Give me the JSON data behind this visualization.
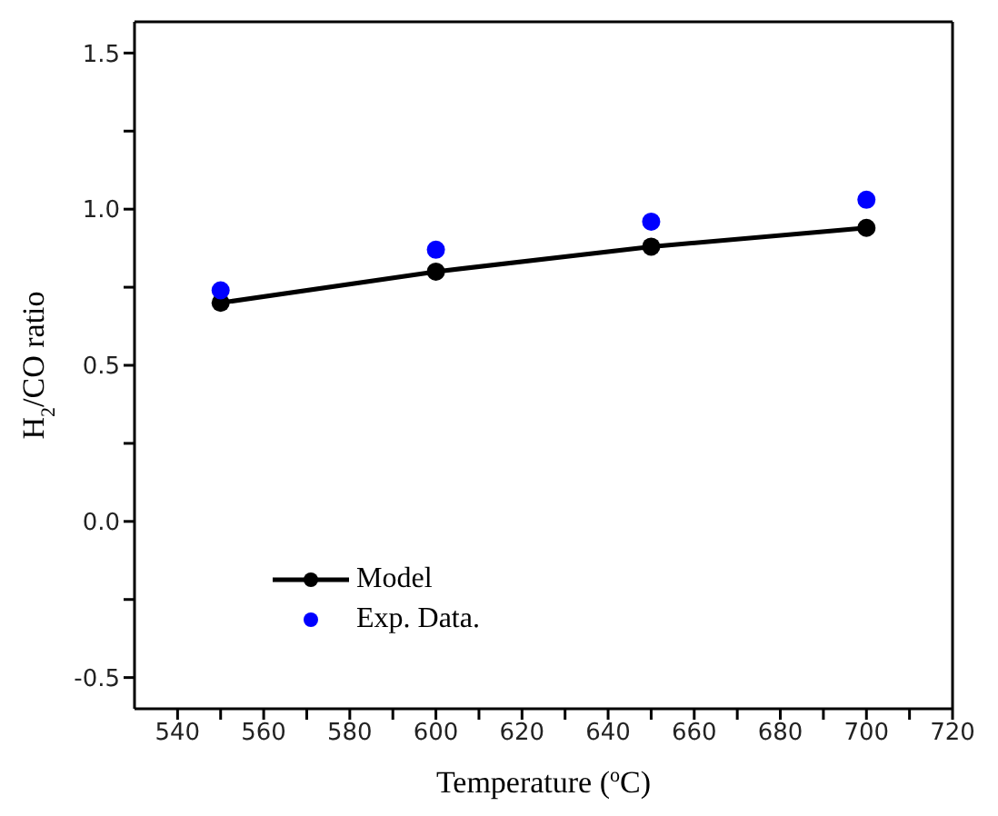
{
  "chart_data": {
    "type": "line",
    "xlabel": "Temperature ($^{o}$C)",
    "ylabel": "H$_{2}$/CO ratio",
    "x": [
      550,
      600,
      650,
      700
    ],
    "series": [
      {
        "name": "Model",
        "color": "#000000",
        "values": [
          0.7,
          0.8,
          0.88,
          0.94
        ],
        "marker": "circle"
      },
      {
        "name": "Exp. Data.",
        "type": "scatter",
        "color": "#0000ff",
        "values": [
          0.74,
          0.87,
          0.96,
          1.03
        ],
        "marker": "circle"
      }
    ],
    "xlim": [
      530,
      720
    ],
    "xticks": [
      540,
      {
        "value": 550,
        "label": null
      },
      560,
      {
        "value": 570,
        "label": null
      },
      580,
      {
        "value": 590,
        "label": null
      },
      600,
      {
        "value": 610,
        "label": null
      },
      620,
      {
        "value": 630,
        "label": null
      },
      640,
      {
        "value": 650,
        "label": null
      },
      660,
      {
        "value": 670,
        "label": null
      },
      680,
      {
        "value": 690,
        "label": null
      },
      700,
      {
        "value": 710,
        "label": null
      },
      720
    ],
    "ylim": [
      -0.6,
      1.6
    ],
    "yticks": [
      -0.5,
      {
        "value": -0.25,
        "label": null
      },
      {
        "value": 0,
        "label": "0.0"
      },
      {
        "value": 0.25,
        "label": null
      },
      0.5,
      {
        "value": 0.75,
        "label": null
      },
      {
        "value": 1,
        "label": "1.0"
      },
      {
        "value": 1.25,
        "label": null
      },
      1.5
    ],
    "grid": false,
    "legend": "bottom left",
    "line_style": "solid"
  }
}
